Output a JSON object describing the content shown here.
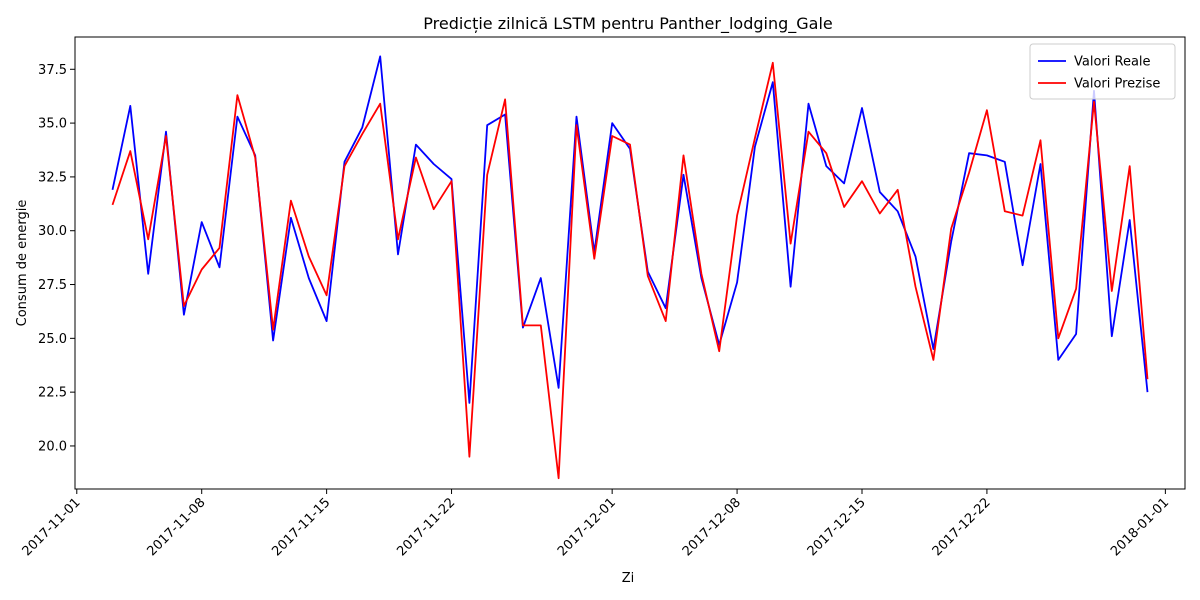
{
  "chart_data": {
    "type": "line",
    "title": "Predicție zilnică LSTM pentru Panther_lodging_Gale",
    "xlabel": "Zi",
    "ylabel": "Consum de energie",
    "xlim": [
      "2017-11-01",
      "2018-01-01"
    ],
    "ylim": [
      18.0,
      39.0
    ],
    "xticks": [
      "2017-11-01",
      "2017-11-08",
      "2017-11-15",
      "2017-11-22",
      "2017-12-01",
      "2017-12-08",
      "2017-12-15",
      "2017-12-22",
      "2018-01-01"
    ],
    "yticks": [
      "20.0",
      "22.5",
      "25.0",
      "27.5",
      "30.0",
      "32.5",
      "35.0",
      "37.5"
    ],
    "grid": false,
    "legend_position": "top-right",
    "x": [
      "2017-11-03",
      "2017-11-04",
      "2017-11-05",
      "2017-11-06",
      "2017-11-07",
      "2017-11-08",
      "2017-11-09",
      "2017-11-10",
      "2017-11-11",
      "2017-11-12",
      "2017-11-13",
      "2017-11-14",
      "2017-11-15",
      "2017-11-16",
      "2017-11-17",
      "2017-11-18",
      "2017-11-19",
      "2017-11-20",
      "2017-11-21",
      "2017-11-22",
      "2017-11-23",
      "2017-11-24",
      "2017-11-25",
      "2017-11-26",
      "2017-11-27",
      "2017-11-28",
      "2017-11-29",
      "2017-11-30",
      "2017-12-01",
      "2017-12-02",
      "2017-12-03",
      "2017-12-04",
      "2017-12-05",
      "2017-12-06",
      "2017-12-07",
      "2017-12-08",
      "2017-12-09",
      "2017-12-10",
      "2017-12-11",
      "2017-12-12",
      "2017-12-13",
      "2017-12-14",
      "2017-12-15",
      "2017-12-16",
      "2017-12-17",
      "2017-12-18",
      "2017-12-19",
      "2017-12-20",
      "2017-12-21",
      "2017-12-22",
      "2017-12-23",
      "2017-12-24",
      "2017-12-25",
      "2017-12-26",
      "2017-12-27",
      "2017-12-28",
      "2017-12-29",
      "2017-12-30",
      "2017-12-31"
    ],
    "series": [
      {
        "name": "Valori Reale",
        "color": "#0000ff",
        "values": [
          31.9,
          35.8,
          28.0,
          34.6,
          26.1,
          30.4,
          28.3,
          35.3,
          33.5,
          24.9,
          30.6,
          27.8,
          25.8,
          33.2,
          34.8,
          38.1,
          28.9,
          34.0,
          33.1,
          32.4,
          22.0,
          34.9,
          35.4,
          25.5,
          27.8,
          22.7,
          35.3,
          29.0,
          35.0,
          33.8,
          28.1,
          26.4,
          32.6,
          27.8,
          24.7,
          27.6,
          33.9,
          36.9,
          27.4,
          35.9,
          33.0,
          32.2,
          35.7,
          31.8,
          30.9,
          28.8,
          24.5,
          29.5,
          33.6,
          33.5,
          33.2,
          28.4,
          33.1,
          24.0,
          25.2,
          36.5,
          25.1,
          30.5,
          22.5
        ]
      },
      {
        "name": "Valori Prezise",
        "color": "#ff0000",
        "values": [
          31.2,
          33.7,
          29.6,
          34.4,
          26.5,
          28.2,
          29.2,
          36.3,
          33.4,
          25.4,
          31.4,
          28.8,
          27.0,
          33.0,
          34.5,
          35.9,
          29.6,
          33.4,
          31.0,
          32.3,
          19.5,
          32.6,
          36.1,
          25.6,
          25.6,
          18.5,
          34.9,
          28.7,
          34.4,
          34.0,
          27.9,
          25.8,
          33.5,
          28.0,
          24.4,
          30.7,
          34.3,
          37.8,
          29.4,
          34.6,
          33.6,
          31.1,
          32.3,
          30.8,
          31.9,
          27.4,
          24.0,
          30.1,
          32.7,
          35.6,
          30.9,
          30.7,
          34.2,
          25.0,
          27.3,
          36.0,
          27.2,
          33.0,
          23.1
        ]
      }
    ]
  }
}
